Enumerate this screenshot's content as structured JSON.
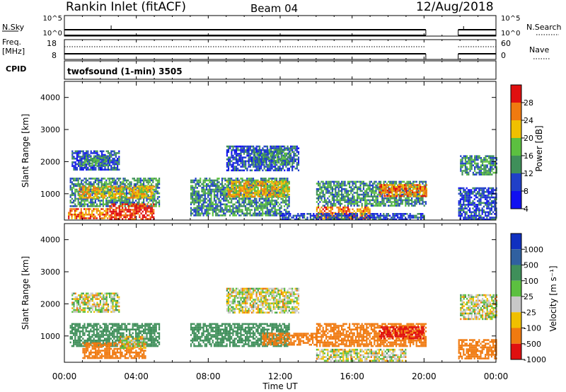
{
  "header": {
    "station": "Rankin Inlet (fitACF)",
    "beam": "Beam 04",
    "date": "12/Aug/2018"
  },
  "strip": {
    "nsky_label": "N.Sky",
    "nsky_ticks": [
      "10^5",
      "10^0"
    ],
    "nsearch_label": "N.Search",
    "freq_label_1": "Freq.",
    "freq_label_2": "[MHz]",
    "freq_ticks": [
      "18",
      "8"
    ],
    "nave_label": "Nave",
    "nave_ticks": [
      "60",
      "0"
    ],
    "cpid_label": "CPID",
    "cpid_value": "twofsound (1-min) 3505"
  },
  "colors": {
    "blue": "#2040c8",
    "green_dark": "#3f8f5a",
    "green": "#5cc040",
    "yellow": "#f0c000",
    "orange": "#f07a10",
    "red": "#e01010",
    "gray": "#c8c8c8"
  },
  "chart_data": [
    {
      "type": "heatmap",
      "name": "power",
      "ylabel": "Slant Range [km]",
      "xlabel": "Time UT",
      "x_ticks": [
        "00:00",
        "04:00",
        "08:00",
        "12:00",
        "16:00",
        "20:00",
        "00:00"
      ],
      "x_range_hours": [
        0,
        24
      ],
      "y_ticks": [
        1000,
        2000,
        3000,
        4000
      ],
      "ylim": [
        180,
        4500
      ],
      "colorbar_label": "Power [dB]",
      "colorbar_ticks": [
        "28",
        "24",
        "20",
        "16",
        "12",
        "8",
        "4"
      ],
      "colorbar_colors": [
        "#e01010",
        "#f07a10",
        "#f0c000",
        "#5cc040",
        "#3f8f5a",
        "#2040c8",
        "#1010f0"
      ],
      "data_gap_hours": [
        20.1,
        21.9
      ],
      "regions": [
        {
          "t": [
            0.4,
            3.0
          ],
          "r": [
            1750,
            2350
          ],
          "v": 8
        },
        {
          "t": [
            1.0,
            2.5
          ],
          "r": [
            1900,
            2200
          ],
          "v": 12
        },
        {
          "t": [
            0.3,
            5.3
          ],
          "r": [
            600,
            1500
          ],
          "v": 12
        },
        {
          "t": [
            0.8,
            5.0
          ],
          "r": [
            850,
            1250
          ],
          "v": 20
        },
        {
          "t": [
            2.5,
            5.0
          ],
          "r": [
            200,
            700
          ],
          "v": 28
        },
        {
          "t": [
            0.2,
            2.5
          ],
          "r": [
            250,
            550
          ],
          "v": 24
        },
        {
          "t": [
            7.0,
            12.5
          ],
          "r": [
            300,
            1500
          ],
          "v": 12
        },
        {
          "t": [
            9.0,
            12.5
          ],
          "r": [
            900,
            1400
          ],
          "v": 20
        },
        {
          "t": [
            9.0,
            13.0
          ],
          "r": [
            1700,
            2500
          ],
          "v": 8
        },
        {
          "t": [
            10.5,
            12.5
          ],
          "r": [
            1900,
            2400
          ],
          "v": 12
        },
        {
          "t": [
            14.0,
            20.1
          ],
          "r": [
            600,
            1400
          ],
          "v": 12
        },
        {
          "t": [
            17.5,
            20.1
          ],
          "r": [
            900,
            1300
          ],
          "v": 24
        },
        {
          "t": [
            14.0,
            17.0
          ],
          "r": [
            200,
            600
          ],
          "v": 24
        },
        {
          "t": [
            12.0,
            20.0
          ],
          "r": [
            200,
            400
          ],
          "v": 8
        },
        {
          "t": [
            21.9,
            24.0
          ],
          "r": [
            200,
            1200
          ],
          "v": 8
        },
        {
          "t": [
            22.0,
            24.0
          ],
          "r": [
            1600,
            2200
          ],
          "v": 12
        }
      ]
    },
    {
      "type": "heatmap",
      "name": "velocity",
      "ylabel": "Slant Range [km]",
      "xlabel": "Time UT",
      "x_ticks": [
        "00:00",
        "04:00",
        "08:00",
        "12:00",
        "16:00",
        "20:00",
        "00:00"
      ],
      "x_range_hours": [
        0,
        24
      ],
      "y_ticks": [
        1000,
        2000,
        3000,
        4000
      ],
      "ylim": [
        180,
        4500
      ],
      "colorbar_label": "Velocity [m s⁻¹]",
      "colorbar_ticks": [
        "1000",
        "500",
        "100",
        "25",
        "-25",
        "-100",
        "-500",
        "-1000"
      ],
      "colorbar_colors": [
        "#1030c0",
        "#3060a0",
        "#3f8f5a",
        "#5cc040",
        "#c8c8c8",
        "#f0c000",
        "#f07a10",
        "#e01010"
      ],
      "data_gap_hours": [
        20.1,
        21.9
      ],
      "regions": [
        {
          "t": [
            0.4,
            3.0
          ],
          "r": [
            1750,
            2350
          ],
          "v": 0
        },
        {
          "t": [
            0.3,
            5.3
          ],
          "r": [
            700,
            1400
          ],
          "v": 200
        },
        {
          "t": [
            1.0,
            4.5
          ],
          "r": [
            300,
            800
          ],
          "v": -200
        },
        {
          "t": [
            3.0,
            4.5
          ],
          "r": [
            600,
            1000
          ],
          "v": 0
        },
        {
          "t": [
            7.0,
            12.5
          ],
          "r": [
            700,
            1400
          ],
          "v": 200
        },
        {
          "t": [
            9.0,
            13.0
          ],
          "r": [
            1700,
            2500
          ],
          "v": 0
        },
        {
          "t": [
            11.0,
            14.0
          ],
          "r": [
            700,
            1100
          ],
          "v": -300
        },
        {
          "t": [
            14.0,
            20.1
          ],
          "r": [
            700,
            1400
          ],
          "v": -300
        },
        {
          "t": [
            17.5,
            20.0
          ],
          "r": [
            900,
            1300
          ],
          "v": -800
        },
        {
          "t": [
            14.0,
            19.0
          ],
          "r": [
            200,
            600
          ],
          "v": 0
        },
        {
          "t": [
            21.9,
            24.0
          ],
          "r": [
            300,
            900
          ],
          "v": -200
        },
        {
          "t": [
            22.0,
            24.0
          ],
          "r": [
            1500,
            2300
          ],
          "v": 0
        }
      ]
    }
  ]
}
